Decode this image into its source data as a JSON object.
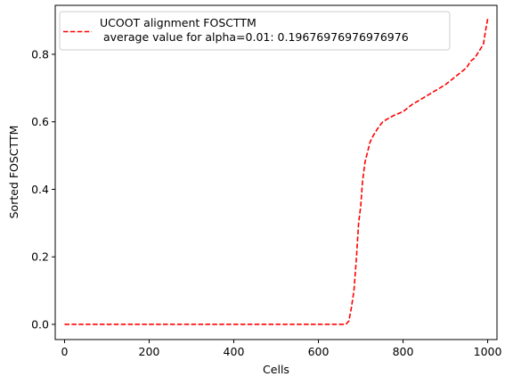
{
  "chart_data": {
    "type": "line",
    "xlabel": "Cells",
    "ylabel": "Sorted FOSCTTM",
    "xlim": [
      -22,
      1022
    ],
    "ylim": [
      -0.045,
      0.945
    ],
    "x_ticks": [
      0,
      200,
      400,
      600,
      800,
      1000
    ],
    "x_tick_labels": [
      "0",
      "200",
      "400",
      "600",
      "800",
      "1000"
    ],
    "y_ticks": [
      0.0,
      0.2,
      0.4,
      0.6,
      0.8
    ],
    "y_tick_labels": [
      "0.0",
      "0.2",
      "0.4",
      "0.6",
      "0.8"
    ],
    "grid": false,
    "legend_position": "upper-left",
    "legend_lines": [
      "UCOOT alignment FOSCTTM",
      " average value for alpha=0.01: 0.19676976976976976"
    ],
    "series": [
      {
        "name": "UCOOT alignment FOSCTTM\n average value for alpha=0.01: 0.19676976976976976",
        "color": "#ff0000",
        "line_style": "dashed",
        "x": [
          0,
          100,
          200,
          300,
          400,
          500,
          600,
          665,
          672,
          678,
          684,
          690,
          695,
          700,
          704,
          710,
          716,
          722,
          730,
          740,
          752,
          765,
          780,
          800,
          820,
          840,
          860,
          880,
          900,
          920,
          940,
          950,
          960,
          970,
          980,
          990,
          995,
          1000
        ],
        "values": [
          0.0,
          0.0,
          0.0,
          0.0,
          0.0,
          0.0,
          0.0,
          0.0,
          0.01,
          0.05,
          0.1,
          0.2,
          0.3,
          0.35,
          0.42,
          0.48,
          0.51,
          0.54,
          0.56,
          0.58,
          0.6,
          0.61,
          0.62,
          0.63,
          0.65,
          0.665,
          0.68,
          0.695,
          0.71,
          0.73,
          0.75,
          0.76,
          0.78,
          0.79,
          0.81,
          0.83,
          0.87,
          0.905
        ]
      }
    ]
  }
}
